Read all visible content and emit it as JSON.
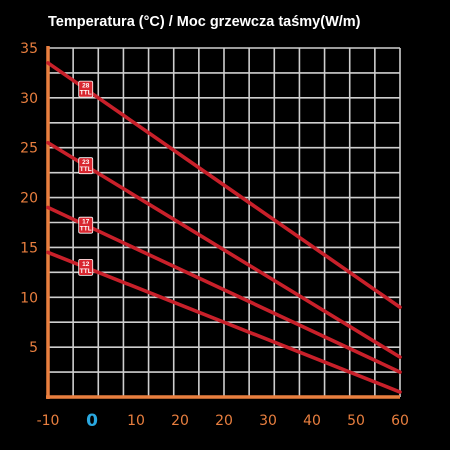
{
  "chart_data": {
    "type": "line",
    "title": "Temperatura (°C) / Moc grzewcza taśmy(W/m)",
    "xlabel": "",
    "ylabel": "",
    "x_tick_labels": [
      "-10",
      "0",
      "10",
      "20",
      "20",
      "30",
      "40",
      "50",
      "60"
    ],
    "x_highlight_label": "0",
    "y_tick_labels": [
      "35",
      "30",
      "25",
      "20",
      "15",
      "10",
      "5"
    ],
    "ylim": [
      0,
      35
    ],
    "xlim": [
      -10,
      60
    ],
    "grid": true,
    "series": [
      {
        "label_lines": [
          "28",
          "TTL"
        ],
        "values": [
          [
            -10,
            33.5
          ],
          [
            60,
            9.0
          ]
        ]
      },
      {
        "label_lines": [
          "23",
          "TTL"
        ],
        "values": [
          [
            -10,
            25.5
          ],
          [
            60,
            4.0
          ]
        ]
      },
      {
        "label_lines": [
          "17",
          "TTL"
        ],
        "values": [
          [
            -10,
            19.0
          ],
          [
            60,
            2.5
          ]
        ]
      },
      {
        "label_lines": [
          "12",
          "TTL"
        ],
        "values": [
          [
            -10,
            14.5
          ],
          [
            60,
            0.5
          ]
        ]
      }
    ],
    "label_at_x": -2.5
  },
  "colors": {
    "background": "#000000",
    "grid": "#cfcfcf",
    "axis": "#e97f3f",
    "line": "#c8202a",
    "badge": "#d8262f",
    "badge_text": "#ffffff",
    "title": "#ffffff",
    "tick": "#e97f3f",
    "highlight_tick": "#2aa8e0"
  }
}
